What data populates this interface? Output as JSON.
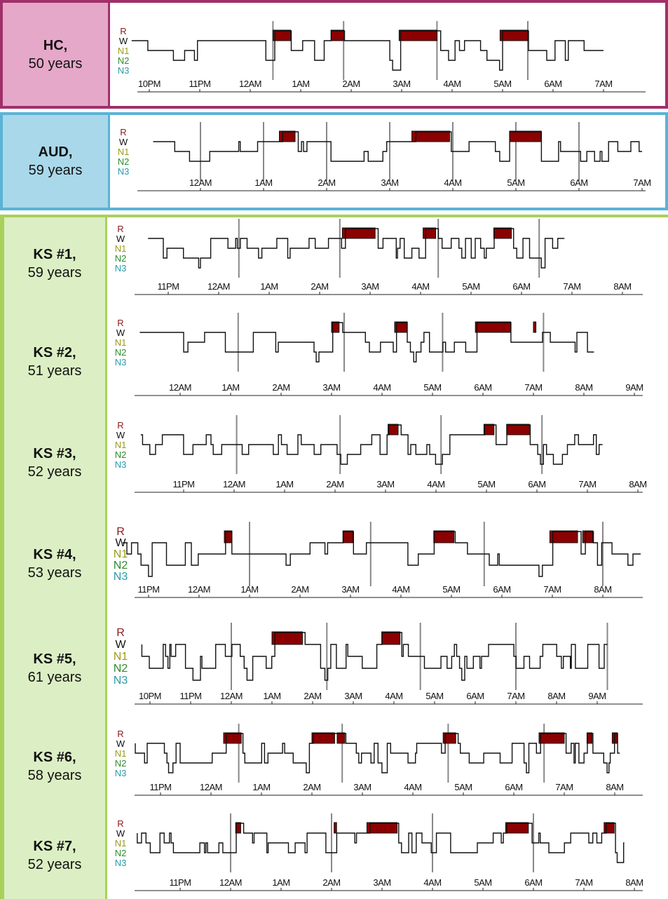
{
  "colors": {
    "hc_border": "#a0306a",
    "hc_fill": "#e6a8c9",
    "aud_border": "#5ab4d6",
    "aud_fill": "#a9d8ea",
    "ks_border": "#a8d15a",
    "ks_fill": "#dcefc4",
    "rem": "#8b0000",
    "hypnogram": "#111111",
    "cycle_line": "#888888"
  },
  "stage_labels": [
    "R",
    "W",
    "N1",
    "N2",
    "N3"
  ],
  "panels": [
    {
      "id": "hc",
      "name": "HC,",
      "age": "50 years",
      "group": "hc",
      "top": 0,
      "height": 155,
      "border": true
    },
    {
      "id": "aud",
      "name": "AUD,",
      "age": "59 years",
      "group": "aud",
      "top": 160,
      "height": 140,
      "border": true
    },
    {
      "id": "ks1",
      "name": "KS #1,",
      "age": "59 years",
      "group": "ks",
      "top": 310,
      "height": 132
    },
    {
      "id": "ks2",
      "name": "KS #2,",
      "age": "51 years",
      "group": "ks",
      "top": 442,
      "height": 148
    },
    {
      "id": "ks3",
      "name": "KS #3,",
      "age": "52 years",
      "group": "ks",
      "top": 590,
      "height": 140
    },
    {
      "id": "ks4",
      "name": "KS #4,",
      "age": "53 years",
      "group": "ks",
      "top": 730,
      "height": 148
    },
    {
      "id": "ks5",
      "name": "KS #5,",
      "age": "61 years",
      "group": "ks",
      "top": 878,
      "height": 150
    },
    {
      "id": "ks6",
      "name": "KS #6,",
      "age": "58 years",
      "group": "ks",
      "top": 1028,
      "height": 130
    },
    {
      "id": "ks7",
      "name": "KS #7,",
      "age": "52 years",
      "group": "ks",
      "top": 1158,
      "height": 124
    }
  ],
  "chart_data": [
    {
      "type": "line",
      "subject": "HC, 50 years",
      "x_ticks": [
        "10PM",
        "11PM",
        "12AM",
        "1AM",
        "2AM",
        "3AM",
        "4AM",
        "5AM",
        "6AM",
        "7AM"
      ],
      "y_categories": [
        "R",
        "W",
        "N1",
        "N2",
        "N3"
      ],
      "rem_periods_hours": [
        [
          0.45,
          0.8
        ],
        [
          1.6,
          1.85
        ],
        [
          2.95,
          3.7
        ],
        [
          4.95,
          5.5
        ]
      ],
      "cycle_boundaries_hours": [
        0.45,
        1.85,
        3.7,
        5.5
      ],
      "start_hour": -2.35,
      "end_hour": 7.0
    },
    {
      "type": "line",
      "subject": "AUD, 59 years",
      "x_ticks": [
        "12AM",
        "1AM",
        "2AM",
        "3AM",
        "4AM",
        "5AM",
        "6AM",
        "7AM"
      ],
      "y_categories": [
        "R",
        "W",
        "N1",
        "N2",
        "N3"
      ],
      "rem_periods_hours": [
        [
          1.25,
          1.5
        ],
        [
          3.35,
          3.95
        ],
        [
          4.9,
          5.4
        ]
      ],
      "cycle_boundaries_hours": [
        0.0,
        1.0,
        2.0,
        3.0,
        4.0,
        5.0,
        6.0
      ],
      "start_hour": -0.75,
      "end_hour": 7.0
    },
    {
      "type": "line",
      "subject": "KS #1, 59 years",
      "x_ticks": [
        "11PM",
        "12AM",
        "1AM",
        "2AM",
        "3AM",
        "4AM",
        "5AM",
        "6AM",
        "7AM",
        "8AM"
      ],
      "y_categories": [
        "R",
        "W",
        "N1",
        "N2",
        "N3"
      ],
      "rem_periods_hours": [
        [
          2.45,
          3.1
        ],
        [
          4.05,
          4.3
        ],
        [
          5.45,
          5.8
        ]
      ],
      "cycle_boundaries_hours": [
        0.4,
        2.4,
        4.35,
        6.35
      ],
      "start_hour": -1.4,
      "end_hour": 6.85
    },
    {
      "type": "line",
      "subject": "KS #2, 51 years",
      "x_ticks": [
        "12AM",
        "1AM",
        "2AM",
        "3AM",
        "4AM",
        "5AM",
        "6AM",
        "7AM",
        "8AM",
        "9AM"
      ],
      "y_categories": [
        "R",
        "W",
        "N1",
        "N2",
        "N3"
      ],
      "rem_periods_hours": [
        [
          3.0,
          3.15
        ],
        [
          4.25,
          4.5
        ],
        [
          5.85,
          6.55
        ],
        [
          7.0,
          7.05
        ]
      ],
      "cycle_boundaries_hours": [
        1.15,
        3.25,
        5.2,
        7.2
      ],
      "start_hour": -0.8,
      "end_hour": 8.2
    },
    {
      "type": "line",
      "subject": "KS #3, 52 years",
      "x_ticks": [
        "11PM",
        "12AM",
        "1AM",
        "2AM",
        "3AM",
        "4AM",
        "5AM",
        "6AM",
        "7AM",
        "8AM"
      ],
      "y_categories": [
        "R",
        "W",
        "N1",
        "N2",
        "N3"
      ],
      "rem_periods_hours": [
        [
          3.05,
          3.25
        ],
        [
          4.95,
          5.15
        ],
        [
          5.4,
          5.85
        ]
      ],
      "cycle_boundaries_hours": [
        0.05,
        2.1,
        4.1,
        6.1
      ],
      "start_hour": -1.85,
      "end_hour": 7.3
    },
    {
      "type": "line",
      "subject": "KS #4, 53 years",
      "x_ticks": [
        "11PM",
        "12AM",
        "1AM",
        "2AM",
        "3AM",
        "4AM",
        "5AM",
        "6AM",
        "7AM",
        "8AM"
      ],
      "y_categories": [
        "R",
        "W",
        "N1",
        "N2",
        "N3"
      ],
      "rem_periods_hours": [
        [
          0.5,
          0.65
        ],
        [
          2.85,
          3.05
        ],
        [
          4.65,
          5.05
        ],
        [
          6.95,
          7.5
        ],
        [
          7.6,
          7.8
        ]
      ],
      "cycle_boundaries_hours": [
        1.0,
        3.4,
        5.65,
        8.0
      ],
      "start_hour": -1.55,
      "end_hour": 8.75
    },
    {
      "type": "line",
      "subject": "KS #5, 61 years",
      "x_ticks": [
        "10PM",
        "11PM",
        "12AM",
        "1AM",
        "2AM",
        "3AM",
        "4AM",
        "5AM",
        "6AM",
        "7AM",
        "8AM",
        "9AM"
      ],
      "y_categories": [
        "R",
        "W",
        "N1",
        "N2",
        "N3"
      ],
      "rem_periods_hours": [
        [
          1.0,
          1.75
        ],
        [
          3.7,
          4.15
        ]
      ],
      "cycle_boundaries_hours": [
        0.0,
        2.35,
        4.65,
        7.0,
        9.25
      ],
      "start_hour": -2.2,
      "end_hour": 9.25
    },
    {
      "type": "line",
      "subject": "KS #6, 58 years",
      "x_ticks": [
        "11PM",
        "12AM",
        "1AM",
        "2AM",
        "3AM",
        "4AM",
        "5AM",
        "6AM",
        "7AM",
        "8AM"
      ],
      "y_categories": [
        "R",
        "W",
        "N1",
        "N2",
        "N3"
      ],
      "rem_periods_hours": [
        [
          0.25,
          0.6
        ],
        [
          2.0,
          2.45
        ],
        [
          2.5,
          2.65
        ],
        [
          4.6,
          4.85
        ],
        [
          6.5,
          7.0
        ],
        [
          7.45,
          7.55
        ],
        [
          7.95,
          8.05
        ]
      ],
      "cycle_boundaries_hours": [
        0.55,
        2.6,
        4.7,
        6.6
      ],
      "start_hour": -1.5,
      "end_hour": 8.1
    },
    {
      "type": "line",
      "subject": "KS #7, 52 years",
      "x_ticks": [
        "11PM",
        "12AM",
        "1AM",
        "2AM",
        "3AM",
        "4AM",
        "5AM",
        "6AM",
        "7AM",
        "8AM"
      ],
      "y_categories": [
        "R",
        "W",
        "N1",
        "N2",
        "N3"
      ],
      "rem_periods_hours": [
        [
          0.1,
          0.2
        ],
        [
          2.05,
          2.1
        ],
        [
          2.7,
          3.3
        ],
        [
          5.45,
          5.9
        ],
        [
          7.4,
          7.6
        ]
      ],
      "cycle_boundaries_hours": [
        0.0,
        2.0,
        4.0,
        6.0
      ],
      "start_hour": -1.85,
      "end_hour": 7.8
    }
  ]
}
